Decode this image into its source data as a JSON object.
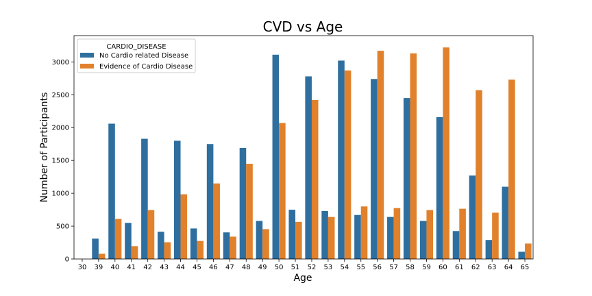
{
  "chart_data": {
    "type": "bar",
    "title": "CVD vs Age",
    "xlabel": "Age",
    "ylabel": "Number of Participants",
    "ylim": [
      0,
      3400
    ],
    "yticks": [
      0,
      500,
      1000,
      1500,
      2000,
      2500,
      3000
    ],
    "grid": false,
    "legend": {
      "title": "CARDIO_DISEASE",
      "placement": "top-left"
    },
    "categories": [
      "30",
      "39",
      "40",
      "41",
      "42",
      "43",
      "44",
      "45",
      "46",
      "47",
      "48",
      "49",
      "50",
      "51",
      "52",
      "53",
      "54",
      "55",
      "56",
      "57",
      "58",
      "59",
      "60",
      "61",
      "62",
      "63",
      "64",
      "65"
    ],
    "series": [
      {
        "name": "No Cardio related Disease",
        "color": "#2f6f9f",
        "values": [
          0,
          310,
          2060,
          550,
          1830,
          415,
          1800,
          465,
          1750,
          405,
          1690,
          580,
          3110,
          750,
          2780,
          730,
          3020,
          670,
          2740,
          640,
          2450,
          580,
          2160,
          425,
          1270,
          290,
          1100,
          110
        ]
      },
      {
        "name": "Evidence of Cardio Disease",
        "color": "#e1812c",
        "values": [
          0,
          80,
          610,
          195,
          745,
          255,
          985,
          275,
          1150,
          340,
          1450,
          455,
          2070,
          565,
          2420,
          640,
          2870,
          800,
          3170,
          775,
          3130,
          745,
          3220,
          765,
          2570,
          705,
          2730,
          235
        ]
      }
    ]
  }
}
